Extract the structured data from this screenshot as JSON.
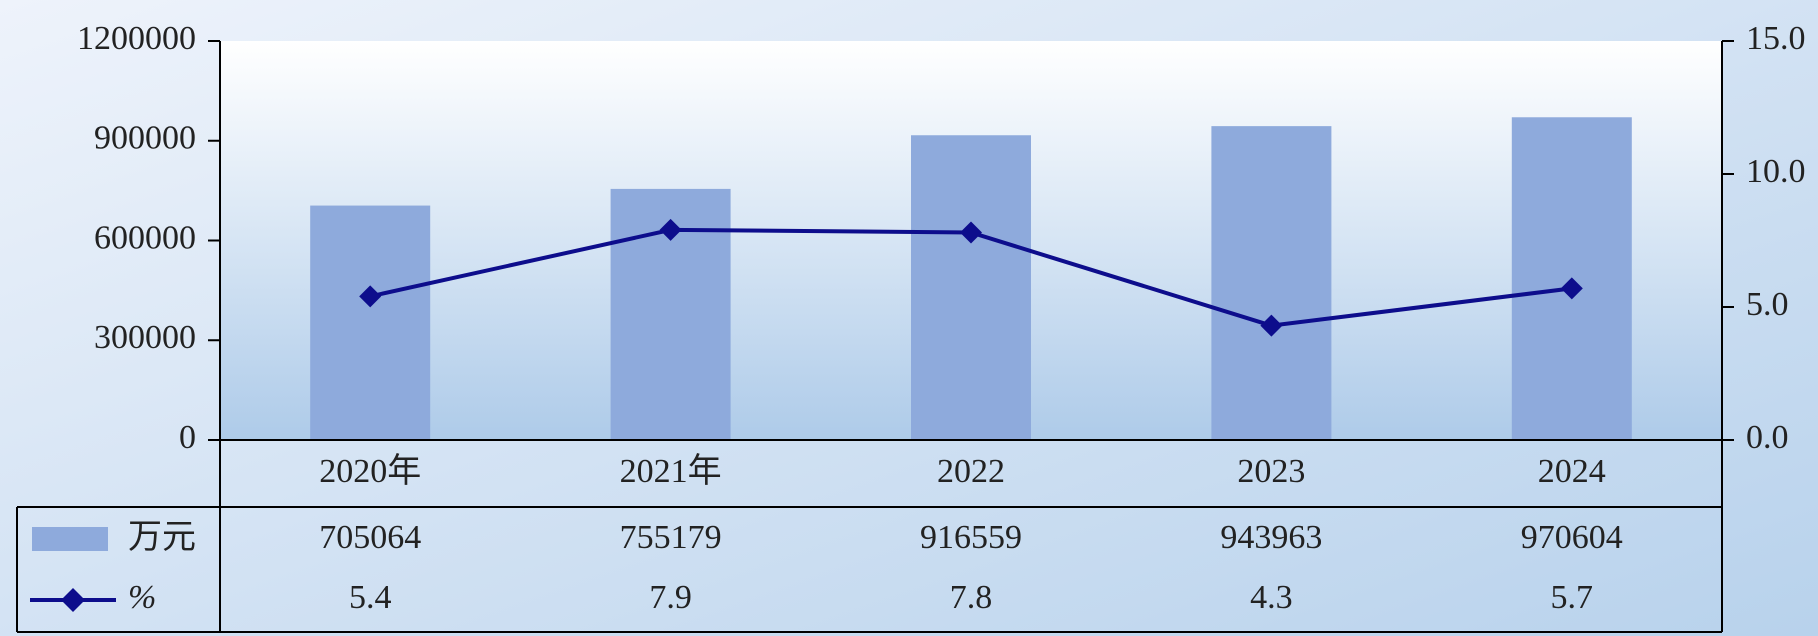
{
  "chart_data": {
    "type": "bar",
    "categories": [
      "2020年",
      "2021年",
      "2022",
      "2023",
      "2024"
    ],
    "series": [
      {
        "name": "万元",
        "type": "bar",
        "color": "#8eaadc",
        "values": [
          705064,
          755179,
          916559,
          943963,
          970604
        ]
      },
      {
        "name": "%",
        "type": "line",
        "axis": "y2",
        "color": "#0d0d8c",
        "values": [
          5.4,
          7.9,
          7.8,
          4.3,
          5.7
        ]
      }
    ],
    "ylim": [
      0,
      1200000
    ],
    "yticks": [
      0,
      300000,
      600000,
      900000,
      1200000
    ],
    "y2lim": [
      0,
      15
    ],
    "y2ticks": [
      {
        "value": 0,
        "label": "0.0"
      },
      {
        "value": 5,
        "label": "5.0"
      },
      {
        "value": 10,
        "label": "10.0"
      },
      {
        "value": 15,
        "label": "15.0"
      }
    ]
  }
}
